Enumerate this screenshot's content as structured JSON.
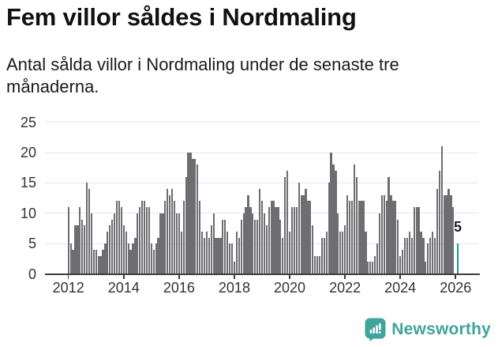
{
  "header": {
    "title": "Fem villor såldes i Nordmaling",
    "subtitle": "Antal sålda villor i Nordmaling under de senaste tre månaderna."
  },
  "chart_data": {
    "type": "bar",
    "title": "Fem villor såldes i Nordmaling",
    "subtitle": "Antal sålda villor i Nordmaling under de senaste tre månaderna.",
    "x_start_month": "2012-01",
    "x_end_month": "2026-02",
    "frequency": "monthly",
    "values": [
      11,
      5,
      4,
      8,
      8,
      11,
      9,
      8,
      15,
      14,
      10,
      4,
      4,
      3,
      3,
      4,
      5,
      7,
      8,
      9,
      10,
      12,
      12,
      11,
      8,
      7,
      5,
      4,
      5,
      6,
      10,
      11,
      12,
      12,
      11,
      11,
      5,
      4,
      5,
      6,
      10,
      10,
      12,
      14,
      13,
      14,
      12,
      10,
      10,
      7,
      12,
      16,
      20,
      20,
      19,
      19,
      18,
      12,
      7,
      6,
      7,
      6,
      8,
      10,
      6,
      6,
      6,
      9,
      9,
      7,
      5,
      5,
      2,
      7,
      6,
      9,
      10,
      11,
      13,
      11,
      10,
      9,
      9,
      14,
      12,
      10,
      8,
      11,
      12,
      12,
      11,
      11,
      9,
      6,
      16,
      17,
      7,
      11,
      11,
      11,
      15,
      13,
      13,
      14,
      12,
      12,
      8,
      3,
      3,
      3,
      6,
      6,
      7,
      15,
      20,
      18,
      17,
      10,
      7,
      7,
      8,
      13,
      12,
      12,
      18,
      16,
      12,
      12,
      12,
      7,
      2,
      2,
      2,
      3,
      5,
      10,
      13,
      13,
      12,
      16,
      13,
      12,
      12,
      9,
      3,
      4,
      6,
      6,
      7,
      6,
      11,
      11,
      11,
      7,
      6,
      2,
      5,
      6,
      7,
      6,
      14,
      17,
      21,
      13,
      13,
      14,
      13,
      11,
      0,
      5
    ],
    "highlight": {
      "index": 169,
      "value": 5,
      "label": "5",
      "month": "2026-02"
    },
    "ylim": [
      0,
      25
    ],
    "yticks": [
      0,
      5,
      10,
      15,
      20,
      25
    ],
    "ytick_labels": [
      "0",
      "5",
      "10",
      "15",
      "20",
      "25"
    ],
    "xticks": [
      2012,
      2014,
      2016,
      2018,
      2020,
      2022,
      2024,
      2026
    ],
    "xtick_labels": [
      "2012",
      "2014",
      "2016",
      "2018",
      "2020",
      "2022",
      "2024",
      "2026"
    ],
    "grid": true,
    "legend": "none",
    "bar_color": "#6e6d72",
    "highlight_color": "#1a9a91"
  },
  "colors": {
    "bar_gray": "#6e6d72",
    "accent_teal": "#1a9a91",
    "brand_teal": "#3ea49c",
    "axis": "#3d3d3d",
    "gridline": "#e6e6e6",
    "text_dark": "#111111",
    "tick_text": "#333333"
  },
  "annotation": {
    "latest_value_label": "5"
  },
  "footer": {
    "brand_name": "Newsworthy"
  }
}
